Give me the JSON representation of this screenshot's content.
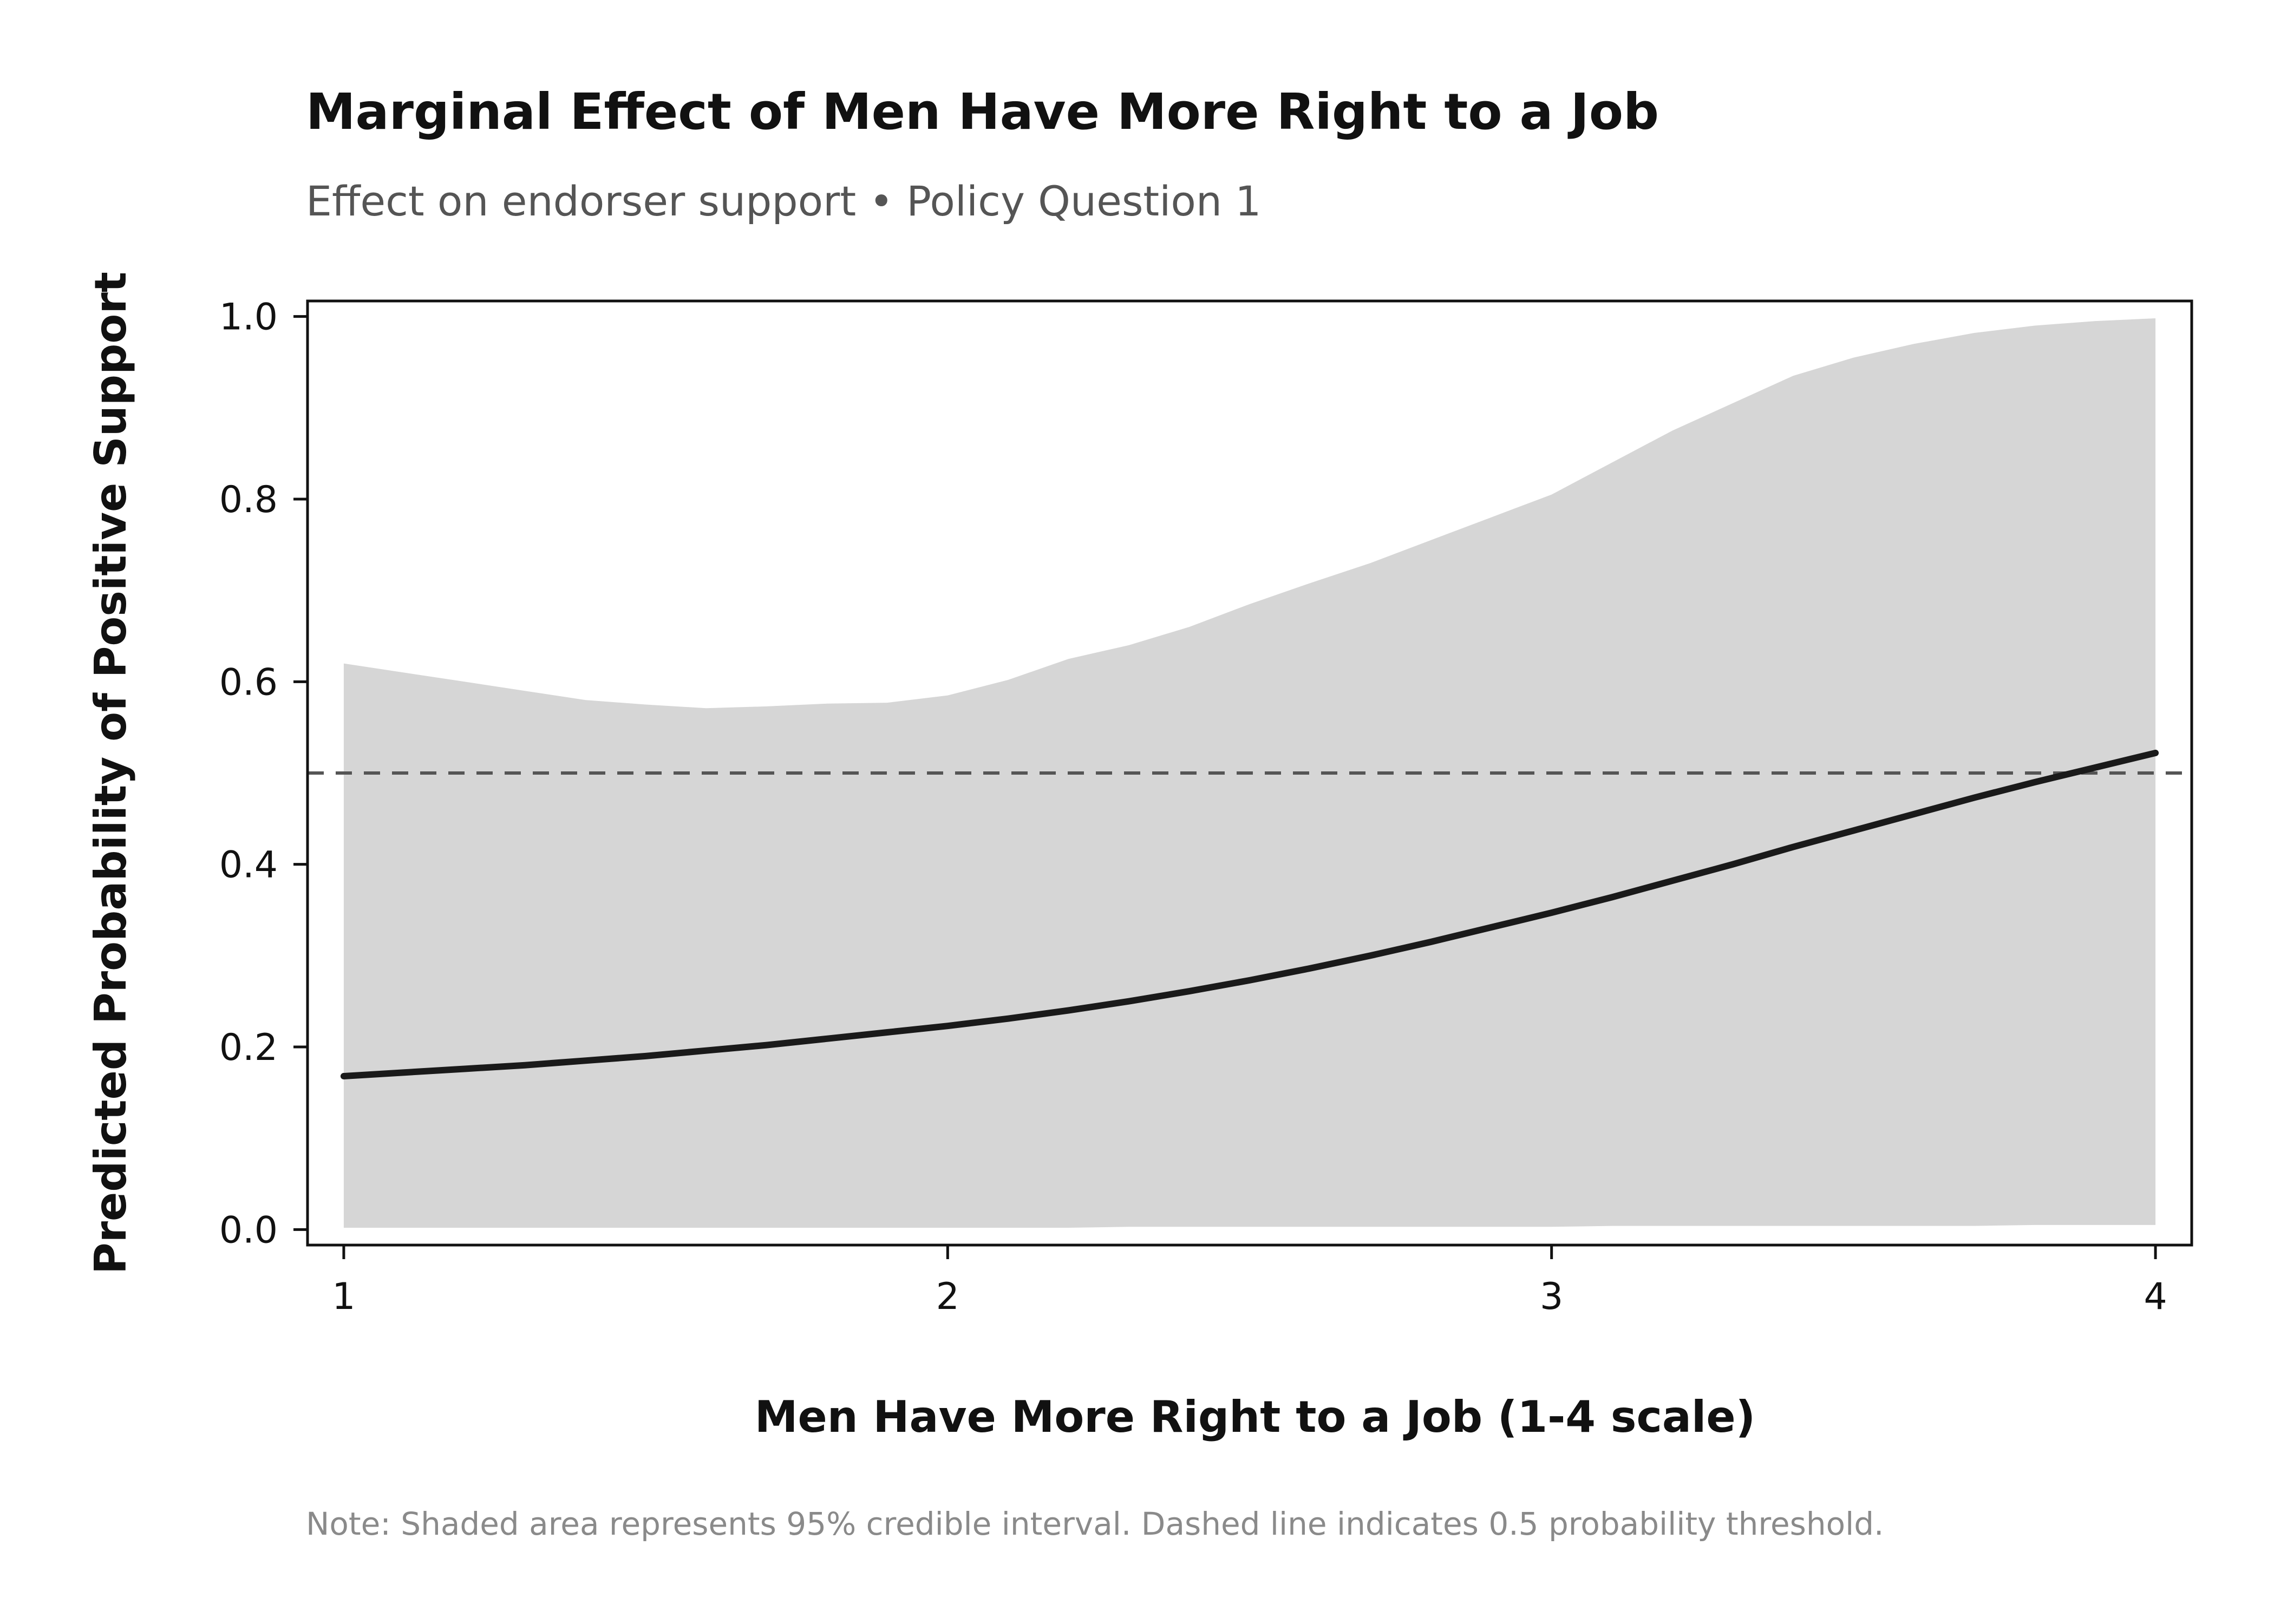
{
  "chart_data": {
    "type": "line",
    "title": "Marginal Effect of Men Have More Right to a Job",
    "subtitle": "Effect on endorser support • Policy Question 1",
    "xlabel": "Men Have More Right to a Job (1-4 scale)",
    "ylabel": "Predicted Probability of Positive Support",
    "note": "Note: Shaded area represents 95% credible interval. Dashed line indicates 0.5 probability threshold.",
    "xlim": [
      0.94,
      4.06
    ],
    "ylim": [
      -0.017,
      1.017
    ],
    "x_ticks": [
      1,
      2,
      3,
      4
    ],
    "x_tick_labels": [
      "1",
      "2",
      "3",
      "4"
    ],
    "y_ticks": [
      0.0,
      0.2,
      0.4,
      0.6,
      0.8,
      1.0
    ],
    "y_tick_labels": [
      "0.0",
      "0.2",
      "0.4",
      "0.6",
      "0.8",
      "1.0"
    ],
    "grid": false,
    "threshold": 0.5,
    "colors": {
      "line": "#1a1a1a",
      "band": "#d6d6d6",
      "threshold": "#555555"
    },
    "series": [
      {
        "x": [
          1.0,
          1.1,
          1.2,
          1.3,
          1.4,
          1.5,
          1.6,
          1.7,
          1.8,
          1.9,
          2.0,
          2.1,
          2.2,
          2.3,
          2.4,
          2.5,
          2.6,
          2.7,
          2.8,
          2.9,
          3.0,
          3.1,
          3.2,
          3.3,
          3.4,
          3.5,
          3.6,
          3.7,
          3.8,
          3.9,
          4.0
        ],
        "values": [
          0.168,
          0.172,
          0.176,
          0.18,
          0.185,
          0.19,
          0.196,
          0.202,
          0.209,
          0.216,
          0.223,
          0.231,
          0.24,
          0.25,
          0.261,
          0.273,
          0.286,
          0.3,
          0.315,
          0.331,
          0.347,
          0.364,
          0.382,
          0.4,
          0.419,
          0.437,
          0.455,
          0.473,
          0.49,
          0.506,
          0.522
        ]
      },
      {
        "x": [
          1.0,
          1.1,
          1.2,
          1.3,
          1.4,
          1.5,
          1.6,
          1.7,
          1.8,
          1.9,
          2.0,
          2.1,
          2.2,
          2.3,
          2.4,
          2.5,
          2.6,
          2.7,
          2.8,
          2.9,
          3.0,
          3.1,
          3.2,
          3.3,
          3.4,
          3.5,
          3.6,
          3.7,
          3.8,
          3.9,
          4.0
        ],
        "upper": [
          0.62,
          0.61,
          0.6,
          0.59,
          0.58,
          0.575,
          0.571,
          0.573,
          0.576,
          0.577,
          0.585,
          0.602,
          0.625,
          0.64,
          0.66,
          0.685,
          0.708,
          0.73,
          0.755,
          0.78,
          0.805,
          0.84,
          0.875,
          0.905,
          0.935,
          0.955,
          0.97,
          0.982,
          0.99,
          0.995,
          0.998
        ],
        "lower": [
          0.002,
          0.002,
          0.002,
          0.002,
          0.002,
          0.002,
          0.002,
          0.002,
          0.002,
          0.002,
          0.002,
          0.002,
          0.002,
          0.003,
          0.003,
          0.003,
          0.003,
          0.003,
          0.003,
          0.003,
          0.003,
          0.004,
          0.004,
          0.004,
          0.004,
          0.004,
          0.004,
          0.004,
          0.005,
          0.005,
          0.005
        ]
      }
    ]
  }
}
